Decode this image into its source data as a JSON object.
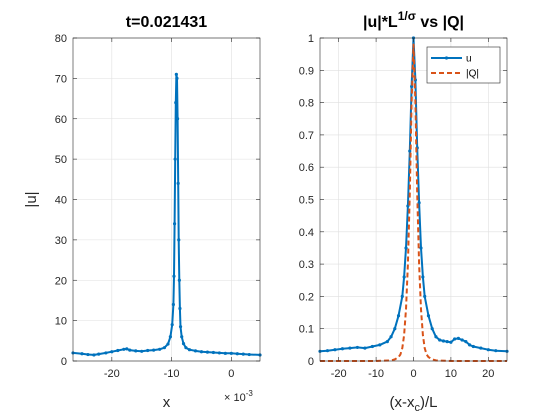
{
  "colors": {
    "series_u": "#0072BD",
    "series_q": "#D95319",
    "grid": "#DFDFDF",
    "axis": "#262626"
  },
  "chart_data": [
    {
      "type": "line",
      "title": "t=0.021431",
      "xlabel": "x",
      "ylabel": "|u|",
      "x_exponent_label": "× 10",
      "x_exponent_power": "-3",
      "x_scale": 0.001,
      "xlim": [
        -0.0265,
        0.0048
      ],
      "ylim": [
        0,
        80
      ],
      "xticks": [
        -0.02,
        -0.01,
        0
      ],
      "xtick_labels": [
        "-20",
        "-10",
        "0"
      ],
      "yticks": [
        0,
        10,
        20,
        30,
        40,
        50,
        60,
        70,
        80
      ],
      "ytick_labels": [
        "0",
        "10",
        "20",
        "30",
        "40",
        "50",
        "60",
        "70",
        "80"
      ],
      "grid": true,
      "series": [
        {
          "color": "#0072BD",
          "marker": "dot",
          "x": [
            -0.0265,
            -0.025,
            -0.024,
            -0.023,
            -0.0222,
            -0.021,
            -0.02,
            -0.019,
            -0.018,
            -0.0175,
            -0.017,
            -0.016,
            -0.015,
            -0.014,
            -0.013,
            -0.012,
            -0.0112,
            -0.0106,
            -0.0102,
            -0.0099,
            -0.0097,
            -0.0096,
            -0.0095,
            -0.0094,
            -0.0093,
            -0.0092,
            -0.0091,
            -0.009,
            -0.0089,
            -0.0088,
            -0.0087,
            -0.0086,
            -0.0085,
            -0.0083,
            -0.008,
            -0.0076,
            -0.007,
            -0.006,
            -0.005,
            -0.004,
            -0.003,
            -0.002,
            -0.001,
            0.0,
            0.001,
            0.002,
            0.003,
            0.0048
          ],
          "y": [
            2.0,
            1.8,
            1.6,
            1.5,
            1.7,
            2.0,
            2.3,
            2.6,
            2.9,
            3.0,
            2.7,
            2.5,
            2.4,
            2.6,
            2.7,
            2.9,
            3.3,
            4.2,
            6.0,
            9.0,
            14.0,
            21.0,
            34.0,
            50.0,
            64.0,
            71.0,
            70.0,
            60.0,
            44.0,
            30.0,
            20.0,
            13.0,
            8.5,
            6.0,
            4.3,
            3.3,
            2.8,
            2.5,
            2.3,
            2.2,
            2.1,
            2.0,
            1.9,
            1.9,
            1.8,
            1.7,
            1.6,
            1.5
          ]
        }
      ]
    },
    {
      "type": "line",
      "title_main": "|u|*L",
      "title_sup": "1/σ",
      "title_tail": " vs |Q|",
      "xlabel_a": "(x-x",
      "xlabel_sub": "c",
      "xlabel_b": ")/L",
      "xlim": [
        -25,
        25
      ],
      "ylim": [
        0,
        1
      ],
      "xticks": [
        -20,
        -10,
        0,
        10,
        20
      ],
      "xtick_labels": [
        "-20",
        "-10",
        "0",
        "10",
        "20"
      ],
      "yticks": [
        0,
        0.1,
        0.2,
        0.3,
        0.4,
        0.5,
        0.6,
        0.7,
        0.8,
        0.9,
        1
      ],
      "ytick_labels": [
        "0",
        "0.1",
        "0.2",
        "0.3",
        "0.4",
        "0.5",
        "0.6",
        "0.7",
        "0.8",
        "0.9",
        "1"
      ],
      "grid": true,
      "legend_position": "top-right",
      "series": [
        {
          "name": "u",
          "color": "#0072BD",
          "style": "solid-dot",
          "x": [
            -25,
            -23,
            -21,
            -19,
            -17,
            -15,
            -13,
            -11,
            -9,
            -7,
            -6,
            -5,
            -4,
            -3,
            -2.5,
            -2,
            -1.5,
            -1,
            -0.5,
            0,
            0.5,
            1,
            1.5,
            2,
            2.5,
            3,
            4,
            5,
            6,
            7,
            8,
            9,
            10,
            11,
            12,
            13,
            14,
            15,
            16,
            18,
            20,
            22,
            25
          ],
          "y": [
            0.03,
            0.032,
            0.035,
            0.038,
            0.04,
            0.042,
            0.04,
            0.045,
            0.05,
            0.06,
            0.075,
            0.1,
            0.14,
            0.2,
            0.26,
            0.35,
            0.48,
            0.65,
            0.85,
            1.0,
            0.87,
            0.66,
            0.49,
            0.35,
            0.26,
            0.2,
            0.14,
            0.1,
            0.075,
            0.065,
            0.062,
            0.06,
            0.058,
            0.068,
            0.07,
            0.065,
            0.06,
            0.05,
            0.045,
            0.04,
            0.035,
            0.032,
            0.03
          ]
        },
        {
          "name": "|Q|",
          "color": "#D95319",
          "style": "dashed",
          "x": [
            -25,
            -10,
            -6,
            -5,
            -4,
            -3.5,
            -3,
            -2.5,
            -2,
            -1.5,
            -1,
            -0.5,
            0,
            0.5,
            1,
            1.5,
            2,
            2.5,
            3,
            3.5,
            4,
            5,
            6,
            10,
            25
          ],
          "y": [
            0.0,
            0.0,
            0.002,
            0.005,
            0.012,
            0.02,
            0.04,
            0.08,
            0.16,
            0.3,
            0.52,
            0.8,
            0.98,
            0.8,
            0.52,
            0.3,
            0.16,
            0.08,
            0.04,
            0.02,
            0.012,
            0.005,
            0.002,
            0.0,
            0.0
          ]
        }
      ]
    }
  ]
}
